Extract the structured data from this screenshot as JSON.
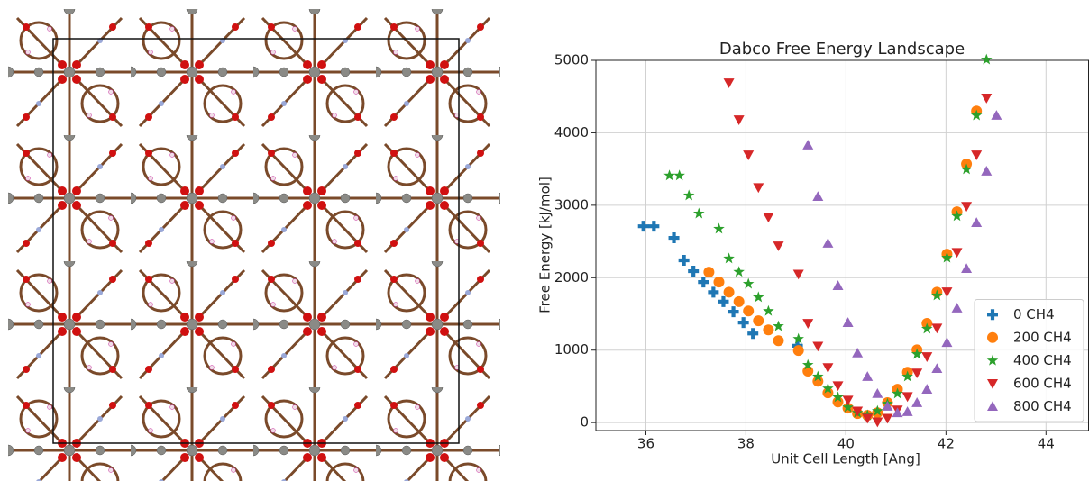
{
  "chart_data": {
    "type": "scatter",
    "title": "Dabco Free Energy Landscape",
    "x_label": "Unit Cell Length [Ang]",
    "y_label": "Free Energy [kJ/mol]",
    "xlim": [
      35,
      44.86
    ],
    "ylim": [
      -110,
      5000
    ],
    "xticks": [
      36,
      38,
      40,
      42,
      44
    ],
    "yticks": [
      0,
      1000,
      2000,
      3000,
      4000,
      5000
    ],
    "grid": true,
    "legend": "lower right",
    "series": [
      {
        "name": "0 CH4",
        "color": "#1f77b4",
        "marker": "plus",
        "x": [
          35.95,
          36.16,
          36.56,
          36.76,
          36.95,
          37.15,
          37.35,
          37.55,
          37.75,
          37.95,
          38.14,
          39.03
        ],
        "values": [
          2710,
          2710,
          2550,
          2240,
          2090,
          1940,
          1800,
          1670,
          1530,
          1380,
          1230,
          1060
        ]
      },
      {
        "name": "200 CH4",
        "color": "#ff7f0e",
        "marker": "circle",
        "x": [
          37.26,
          37.46,
          37.66,
          37.86,
          38.05,
          38.25,
          38.45,
          38.65,
          39.05,
          39.24,
          39.44,
          39.64,
          39.84,
          40.04,
          40.23,
          40.43,
          40.63,
          40.83,
          41.03,
          41.23,
          41.42,
          41.62,
          41.82,
          42.02,
          42.22,
          42.41,
          42.61
        ],
        "values": [
          2077,
          1940,
          1800,
          1670,
          1540,
          1405,
          1280,
          1130,
          995,
          710,
          570,
          410,
          285,
          200,
          125,
          100,
          135,
          275,
          460,
          695,
          1005,
          1370,
          1800,
          2325,
          2910,
          3570,
          4300
        ]
      },
      {
        "name": "400 CH4",
        "color": "#2ca02c",
        "marker": "star",
        "x": [
          36.47,
          36.67,
          36.86,
          37.06,
          37.46,
          37.66,
          37.86,
          38.05,
          38.25,
          38.45,
          38.65,
          39.05,
          39.24,
          39.44,
          39.64,
          39.84,
          40.04,
          40.23,
          40.43,
          40.63,
          40.83,
          41.03,
          41.23,
          41.42,
          41.62,
          41.82,
          42.02,
          42.22,
          42.41,
          42.61,
          42.81
        ],
        "values": [
          3410,
          3410,
          3135,
          2885,
          2675,
          2265,
          2080,
          1915,
          1730,
          1540,
          1330,
          1155,
          795,
          635,
          470,
          350,
          210,
          135,
          100,
          160,
          260,
          400,
          635,
          945,
          1295,
          1755,
          2275,
          2850,
          3495,
          4240,
          5010
        ]
      },
      {
        "name": "600 CH4",
        "color": "#d62728",
        "marker": "triangle-down",
        "x": [
          37.66,
          37.86,
          38.05,
          38.25,
          38.45,
          38.65,
          39.05,
          39.24,
          39.44,
          39.64,
          39.84,
          40.04,
          40.23,
          40.43,
          40.63,
          40.83,
          41.03,
          41.23,
          41.42,
          41.62,
          41.82,
          42.02,
          42.22,
          42.41,
          42.61,
          42.81
        ],
        "values": [
          4690,
          4180,
          3695,
          3245,
          2835,
          2440,
          2050,
          1370,
          1055,
          760,
          510,
          310,
          160,
          60,
          10,
          60,
          175,
          360,
          685,
          910,
          1305,
          1805,
          2350,
          2985,
          3695,
          4480
        ]
      },
      {
        "name": "800 CH4",
        "color": "#9467bd",
        "marker": "triangle-up",
        "x": [
          39.24,
          39.44,
          39.64,
          39.84,
          40.04,
          40.23,
          40.43,
          40.63,
          40.83,
          41.03,
          41.23,
          41.42,
          41.62,
          41.82,
          42.02,
          42.22,
          42.41,
          42.61,
          42.81,
          43.01
        ],
        "values": [
          3830,
          3120,
          2475,
          1890,
          1380,
          960,
          635,
          400,
          225,
          135,
          150,
          275,
          460,
          745,
          1105,
          1580,
          2125,
          2760,
          3470,
          4240
        ]
      }
    ]
  }
}
